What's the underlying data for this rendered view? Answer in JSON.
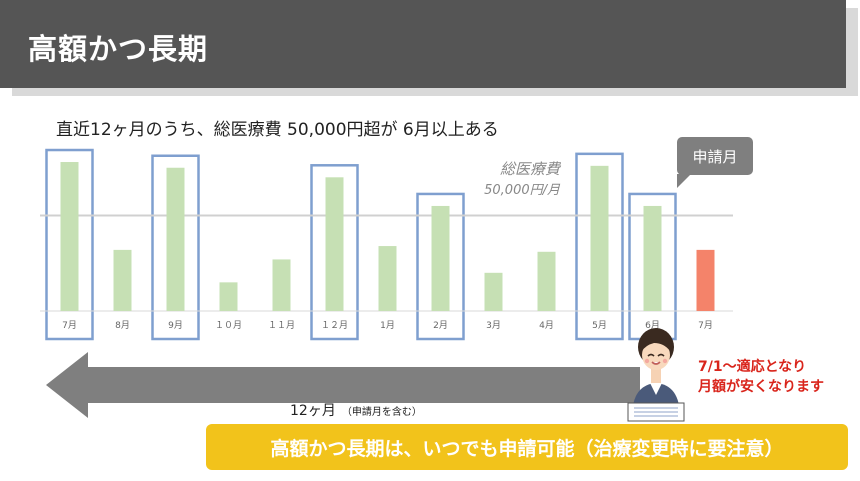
{
  "header": {
    "title": "高額かつ長期"
  },
  "subtitle": "直近12ヶ月のうち、総医療費 50,000円超が 6月以上ある",
  "threshold": {
    "label_line1": "総医療費",
    "label_line2": "50,000円/月"
  },
  "callout": "申請月",
  "arrow_label": {
    "main": "12ヶ月",
    "sub": "（申請月を含む）"
  },
  "note": {
    "line1": "7/1～適応となり",
    "line2": "月額が安くなります"
  },
  "banner": "高額かつ長期は、いつでも申請可能（治療変更時に要注意）",
  "chart_data": {
    "type": "bar",
    "categories": [
      "7月",
      "8月",
      "9月",
      "１０月",
      "１１月",
      "１２月",
      "1月",
      "2月",
      "3月",
      "4月",
      "5月",
      "6月",
      "7月"
    ],
    "values": [
      78,
      32,
      75,
      15,
      27,
      70,
      34,
      55,
      20,
      31,
      76,
      55,
      32
    ],
    "threshold": 50,
    "ylim": [
      0,
      100
    ],
    "highlighted": [
      0,
      2,
      5,
      7,
      10,
      11
    ],
    "application_index": 12
  },
  "colors": {
    "bar": "#c6e0b4",
    "bar_application": "#f4836a",
    "highlight_box": "#7f9fcf",
    "threshold_line": "#d0d0d0",
    "arrow": "#7f7f7f",
    "banner": "#f2c31b",
    "note": "#d9241b"
  }
}
